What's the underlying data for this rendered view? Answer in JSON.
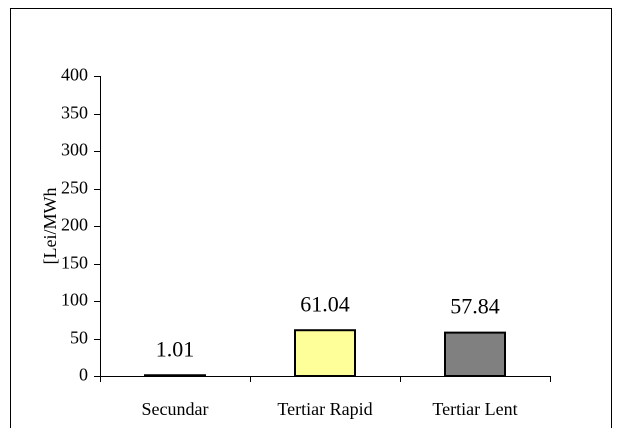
{
  "chart_data": {
    "type": "bar",
    "y_label": "[Lei/MWh",
    "categories": [
      "Secundar",
      "Tertiar Rapid",
      "Tertiar Lent"
    ],
    "values": [
      1.01,
      61.04,
      57.84
    ],
    "colors": [
      "#333333",
      "#ffff99",
      "#808080"
    ],
    "ylim": [
      0,
      400
    ],
    "yticks": [
      0,
      50,
      100,
      150,
      200,
      250,
      300,
      350,
      400
    ]
  }
}
